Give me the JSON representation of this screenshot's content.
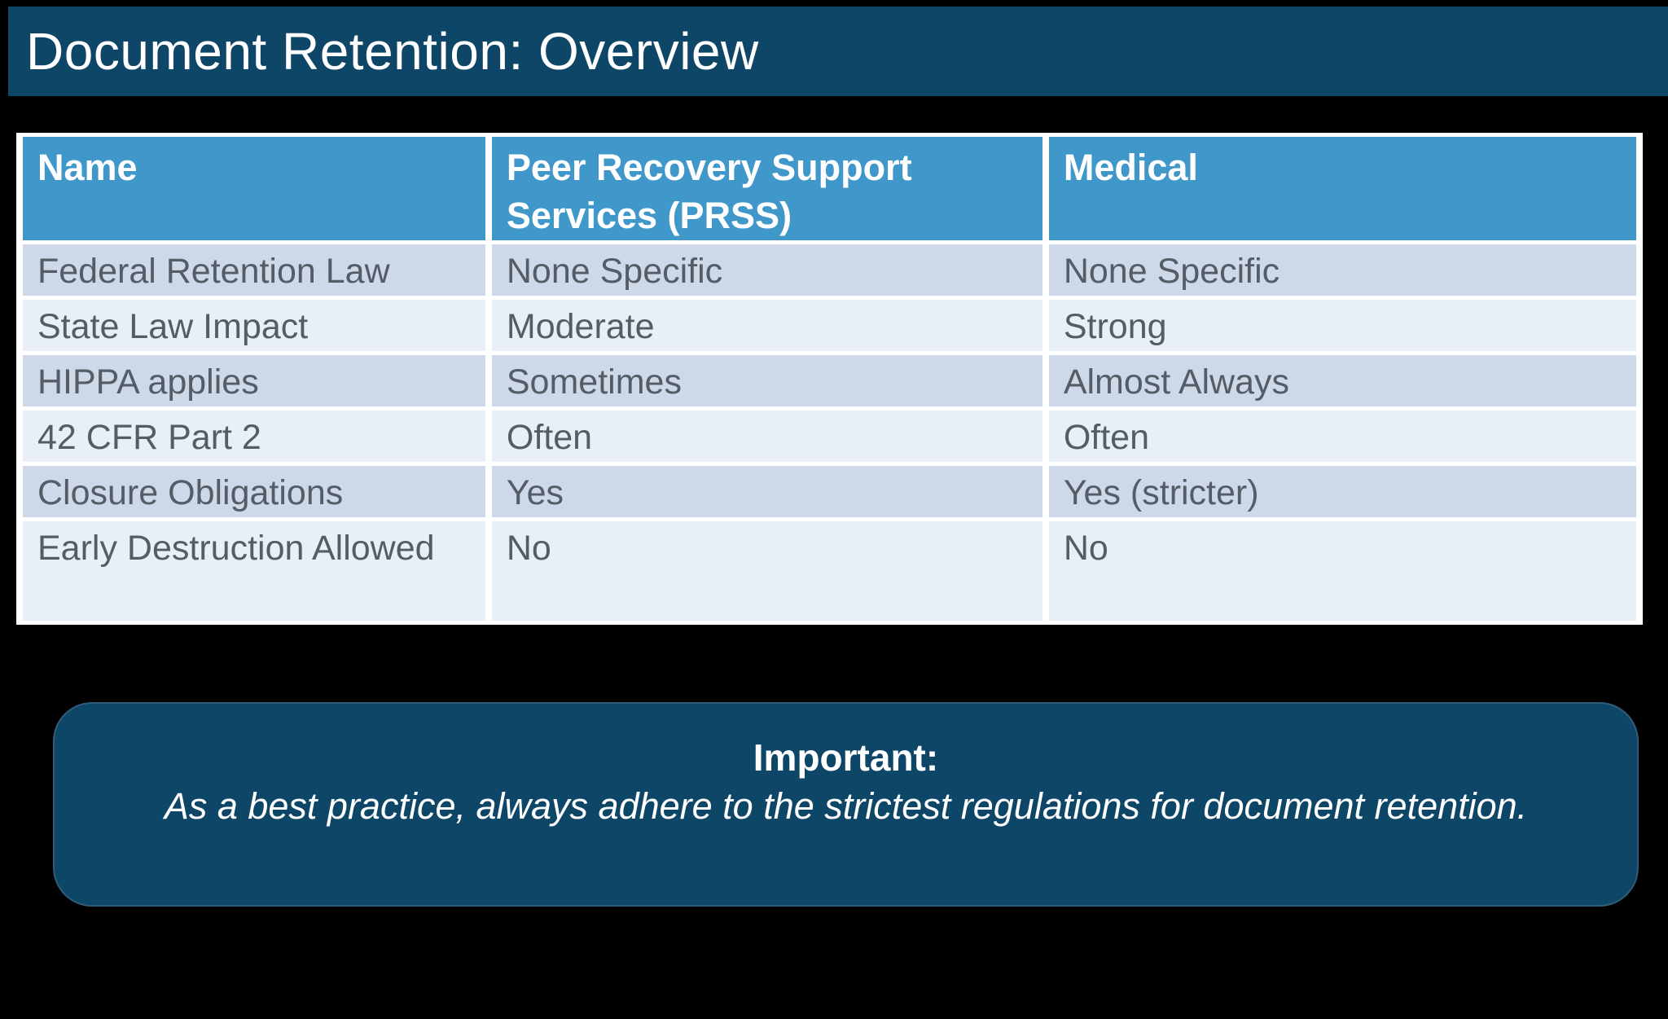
{
  "title_bar": {
    "title": "Document Retention: Overview",
    "background": "#0e4668",
    "text_color": "#ffffff"
  },
  "table": {
    "header": {
      "columns": [
        "Name",
        "Peer Recovery Support Services (PRSS)",
        "Medical"
      ],
      "background": "#3f97ca",
      "text_color": "#ffffff"
    },
    "rows": [
      {
        "name": "Federal Retention Law",
        "prss": "None Specific",
        "medical": "None Specific"
      },
      {
        "name": "State Law Impact",
        "prss": "Moderate",
        "medical": "Strong"
      },
      {
        "name": "HIPPA applies",
        "prss": "Sometimes",
        "medical": "Almost Always"
      },
      {
        "name": "42 CFR Part 2",
        "prss": "Often",
        "medical": "Often"
      },
      {
        "name": "Closure Obligations",
        "prss": "Yes",
        "medical": "Yes (stricter)"
      },
      {
        "name": "Early Destruction Allowed",
        "prss": "No",
        "medical": "No"
      }
    ],
    "row_colors": {
      "odd": "#cdd9e8",
      "even": "#e9eff6"
    },
    "cell_text_color": "#565c66",
    "grid_color": "#ffffff"
  },
  "callout": {
    "heading": "Important:",
    "body": "As a best practice, always adhere to the strictest regulations for document retention.",
    "background": "#0e4668",
    "text_color": "#ffffff"
  },
  "page": {
    "background": "#000000"
  }
}
